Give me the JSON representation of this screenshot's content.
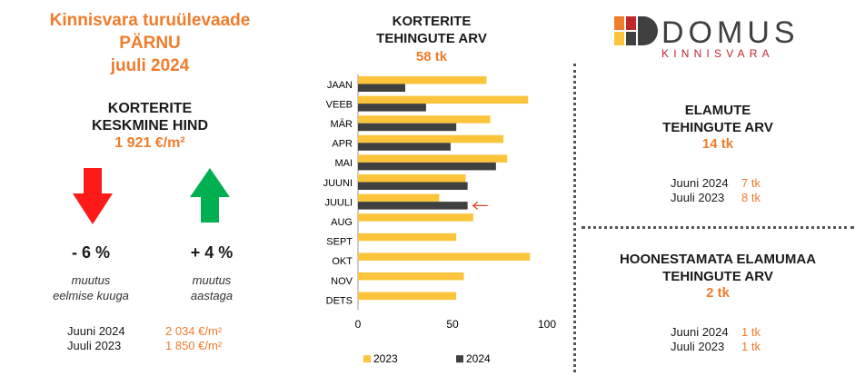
{
  "header": {
    "title_line1": "Kinnisvara turuülevaade",
    "title_line2": "PÄRNU",
    "title_line3": "juuli 2024"
  },
  "apartment_price": {
    "heading_line1": "KORTERITE",
    "heading_line2": "KESKMINE HIND",
    "value": "1 921 €/m²",
    "monthly_change": "- 6 %",
    "monthly_label_line1": "muutus",
    "monthly_label_line2": "eelmise kuuga",
    "yearly_change": "+ 4 %",
    "yearly_label_line1": "muutus",
    "yearly_label_line2": "aastaga",
    "compare": [
      {
        "label": "Juuni 2024",
        "value": "2 034 €/m²"
      },
      {
        "label": "Juuli 2023",
        "value": "1 850 €/m²"
      }
    ],
    "down_arrow_color": "#ff1a1a",
    "up_arrow_color": "#00b050"
  },
  "chart_header": {
    "title_line1": "KORTERITE",
    "title_line2": "TEHINGUTE ARV",
    "count": "58 tk"
  },
  "chart_data": {
    "type": "bar",
    "orientation": "horizontal",
    "categories": [
      "JAAN",
      "VEEB",
      "MÄR",
      "APR",
      "MAI",
      "JUUNI",
      "JUULI",
      "AUG",
      "SEPT",
      "OKT",
      "NOV",
      "DETS"
    ],
    "series": [
      {
        "name": "2023",
        "color": "#fcc43a",
        "values": [
          68,
          90,
          70,
          77,
          79,
          57,
          43,
          61,
          52,
          91,
          56,
          52
        ]
      },
      {
        "name": "2024",
        "color": "#404040",
        "values": [
          25,
          36,
          52,
          49,
          73,
          58,
          58,
          null,
          null,
          null,
          null,
          null
        ]
      }
    ],
    "xlim": [
      0,
      100
    ],
    "xticks": [
      "0",
      "50",
      "100"
    ],
    "legend_position": "bottom",
    "highlight_category": "JUULI",
    "highlight_color": "#e8442a"
  },
  "houses": {
    "title_line1": "ELAMUTE",
    "title_line2": "TEHINGUTE ARV",
    "count": "14 tk",
    "compare": [
      {
        "label": "Juuni 2024",
        "value": "7 tk"
      },
      {
        "label": "Juuli 2023",
        "value": "8 tk"
      }
    ]
  },
  "land": {
    "title_line1": "HOONESTAMATA ELAMUMAA",
    "title_line2": "TEHINGUTE ARV",
    "count": "2 tk",
    "compare": [
      {
        "label": "Juuni 2024",
        "value": "1 tk"
      },
      {
        "label": "Juuli 2023",
        "value": "1 tk"
      }
    ]
  },
  "logo": {
    "name": "DOMUS",
    "subtitle": "KINNISVARA",
    "colors": {
      "orange": "#f07c2c",
      "yellow": "#fcc43a",
      "dark": "#404040",
      "red": "#c0272d"
    }
  }
}
